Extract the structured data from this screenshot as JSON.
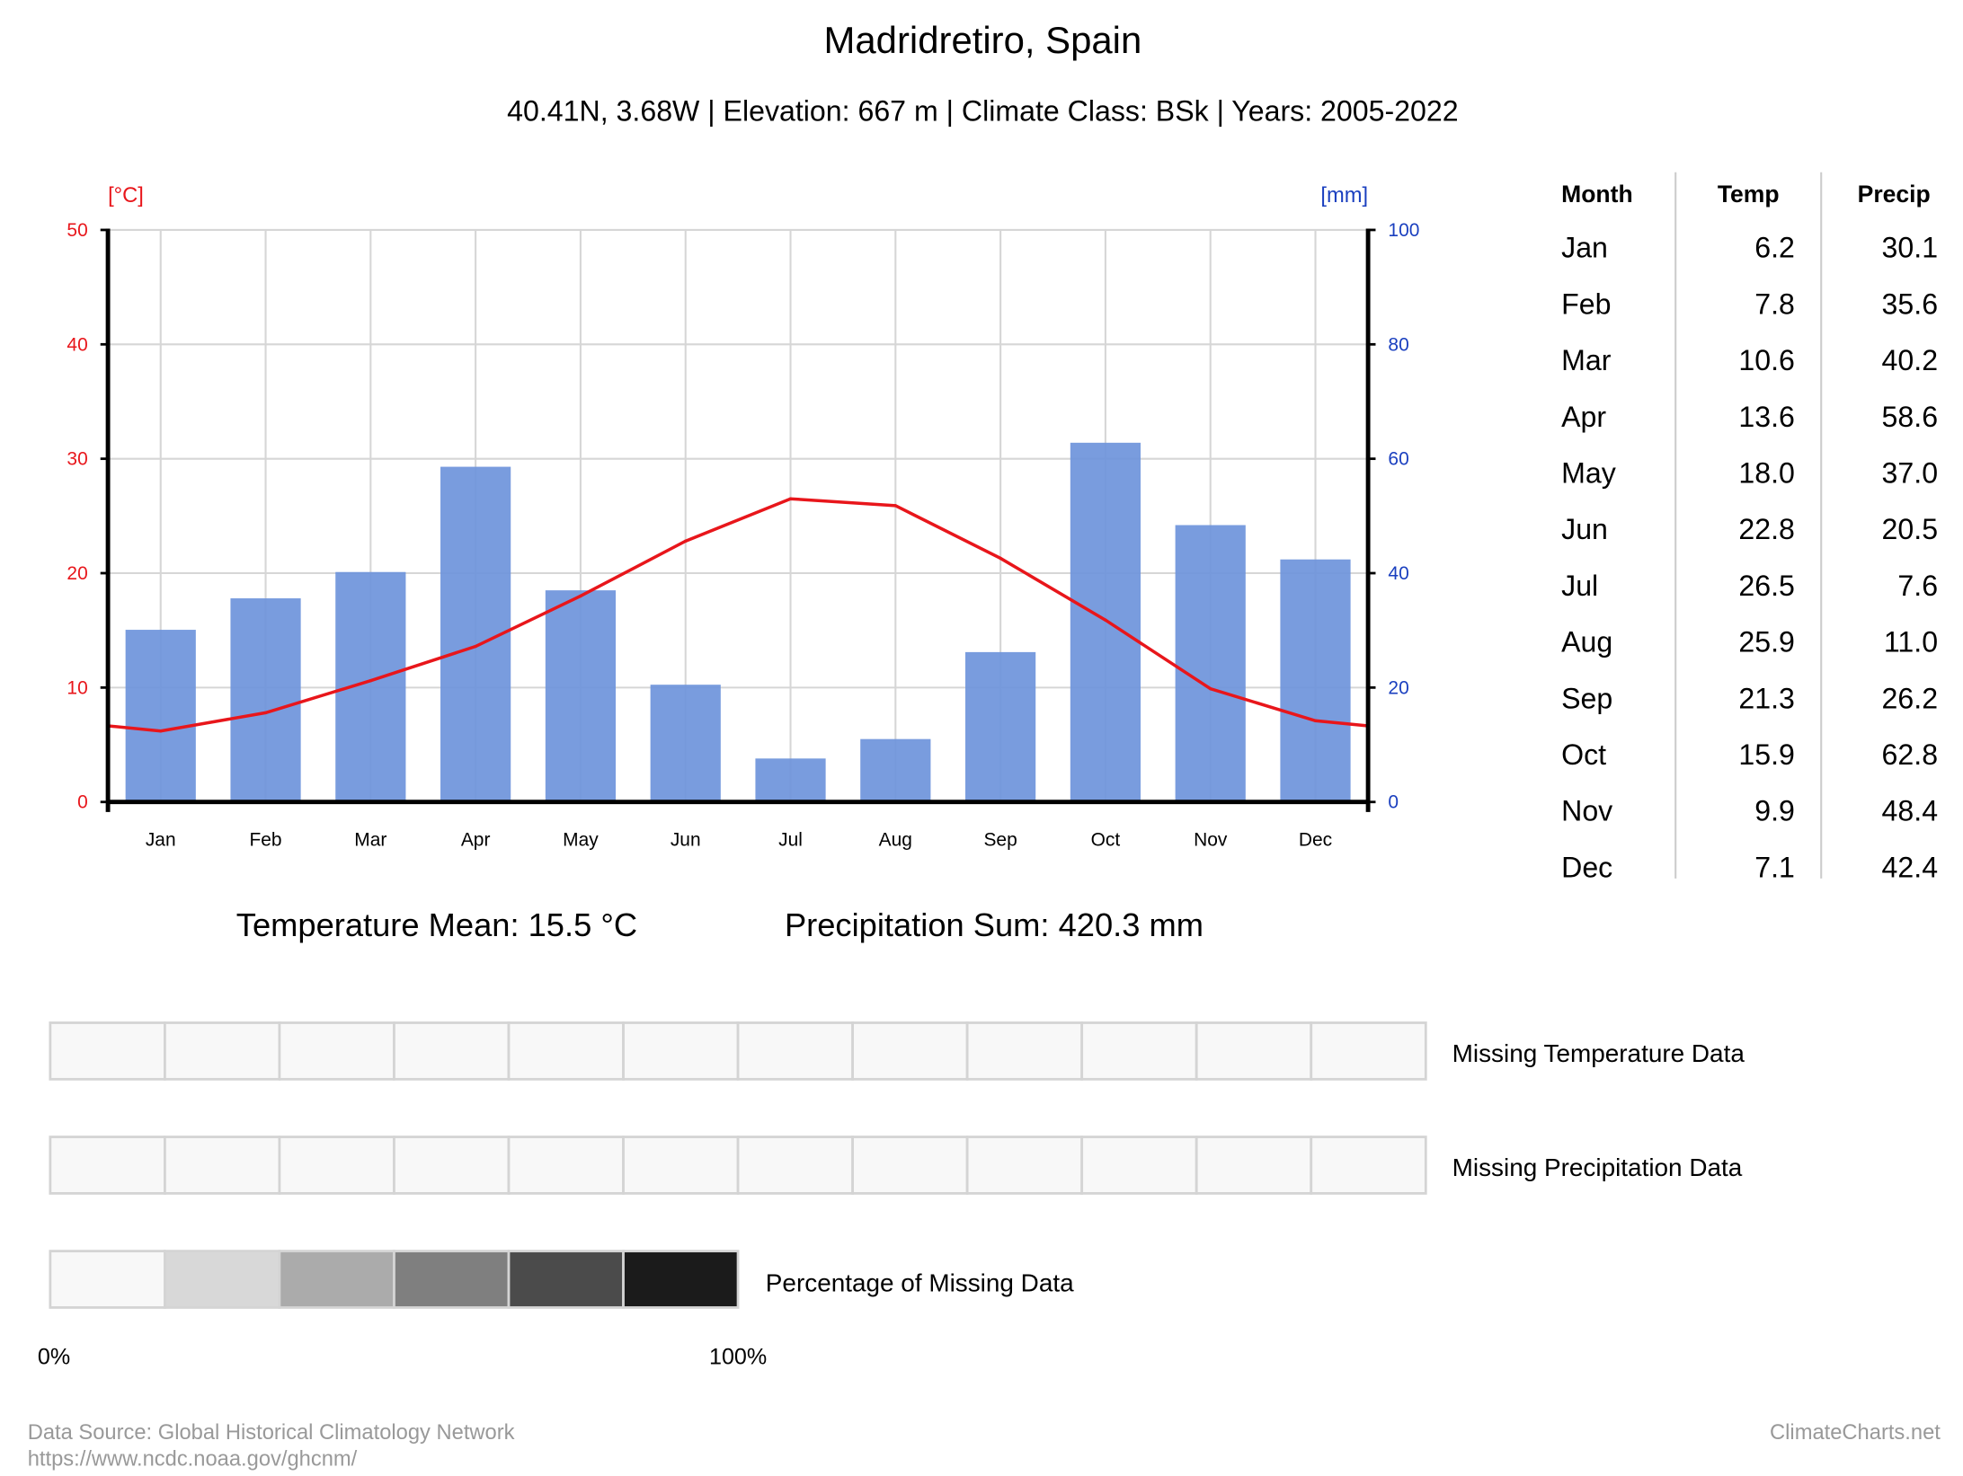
{
  "title": "Madridretiro, Spain",
  "subtitle": "40.41N, 3.68W | Elevation: 667 m | Climate Class: BSk | Years: 2005-2022",
  "chart_data": {
    "type": "bar+line",
    "categories": [
      "Jan",
      "Feb",
      "Mar",
      "Apr",
      "May",
      "Jun",
      "Jul",
      "Aug",
      "Sep",
      "Oct",
      "Nov",
      "Dec"
    ],
    "series": [
      {
        "name": "Temp",
        "type": "line",
        "axis": "left",
        "color": "#e8161b",
        "values": [
          6.2,
          7.8,
          10.6,
          13.6,
          18.0,
          22.8,
          26.5,
          25.9,
          21.3,
          15.9,
          9.9,
          7.1
        ]
      },
      {
        "name": "Precip",
        "type": "bar",
        "axis": "right",
        "color": "#6f95db",
        "values": [
          30.1,
          35.6,
          40.2,
          58.6,
          37.0,
          20.5,
          7.6,
          11.0,
          26.2,
          62.8,
          48.4,
          42.4
        ]
      }
    ],
    "y_left": {
      "label": "[°C]",
      "range": [
        0,
        50
      ],
      "ticks": [
        "0",
        "10",
        "20",
        "30",
        "40",
        "50"
      ],
      "color": "#e8161b"
    },
    "y_right": {
      "label": "[mm]",
      "range": [
        0,
        100
      ],
      "ticks": [
        "0",
        "20",
        "40",
        "60",
        "80",
        "100"
      ],
      "color": "#1a3fbf"
    },
    "grid": true
  },
  "table": {
    "headers": [
      "Month",
      "Temp",
      "Precip"
    ],
    "rows": [
      [
        "Jan",
        "6.2",
        "30.1"
      ],
      [
        "Feb",
        "7.8",
        "35.6"
      ],
      [
        "Mar",
        "10.6",
        "40.2"
      ],
      [
        "Apr",
        "13.6",
        "58.6"
      ],
      [
        "May",
        "18.0",
        "37.0"
      ],
      [
        "Jun",
        "22.8",
        "20.5"
      ],
      [
        "Jul",
        "26.5",
        "7.6"
      ],
      [
        "Aug",
        "25.9",
        "11.0"
      ],
      [
        "Sep",
        "21.3",
        "26.2"
      ],
      [
        "Oct",
        "15.9",
        "62.8"
      ],
      [
        "Nov",
        "9.9",
        "48.4"
      ],
      [
        "Dec",
        "7.1",
        "42.4"
      ]
    ]
  },
  "summary": {
    "temp_mean": "Temperature Mean: 15.5 °C",
    "precip_sum": "Precipitation Sum: 420.3 mm"
  },
  "missing": {
    "temp_label": "Missing Temperature Data",
    "precip_label": "Missing Precipitation Data",
    "temp_values": [
      0,
      0,
      0,
      0,
      0,
      0,
      0,
      0,
      0,
      0,
      0,
      0
    ],
    "precip_values": [
      0,
      0,
      0,
      0,
      0,
      0,
      0,
      0,
      0,
      0,
      0,
      0
    ],
    "legend_label": "Percentage of Missing Data",
    "legend_colors": [
      "#f8f8f8",
      "#d8d8d8",
      "#ababab",
      "#7f7f7f",
      "#4b4b4b",
      "#1b1b1b"
    ],
    "legend_min": "0%",
    "legend_max": "100%"
  },
  "footer": {
    "source": "Data Source: Global Historical Climatology Network",
    "url": "https://www.ncdc.noaa.gov/ghcnm/",
    "brand": "ClimateCharts.net"
  }
}
